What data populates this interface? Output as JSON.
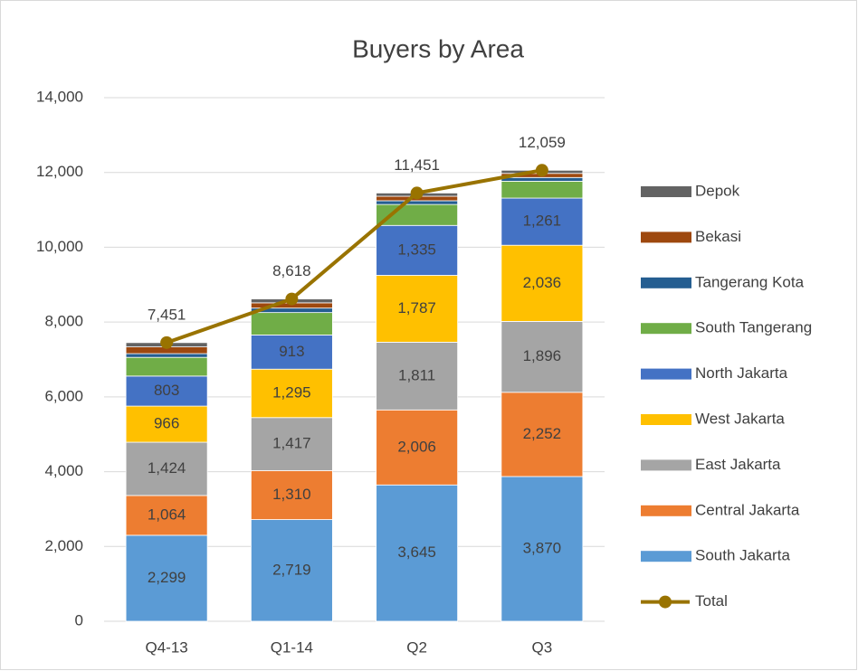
{
  "chart_data": {
    "type": "bar",
    "stacked": true,
    "title": "Buyers by Area",
    "categories": [
      "Q4-13",
      "Q1-14",
      "Q2",
      "Q3"
    ],
    "ylim": [
      0,
      14000
    ],
    "yticks": [
      0,
      {
        "value": 2000,
        "label": "2,000"
      },
      {
        "value": 4000,
        "label": "4,000"
      },
      {
        "value": 6000,
        "label": "6,000"
      },
      {
        "value": 8000,
        "label": "8,000"
      },
      {
        "value": 10000,
        "label": "10,000"
      },
      {
        "value": 12000,
        "label": "12,000"
      },
      {
        "value": 14000,
        "label": "14,000"
      }
    ],
    "grid": true,
    "legend": "right",
    "series": [
      {
        "name": "South Jakarta",
        "color": "#5b9bd5",
        "values": [
          2299,
          2719,
          3645,
          3870
        ],
        "value_labels": [
          "2,299",
          "2,719",
          "3,645",
          "3,870"
        ]
      },
      {
        "name": "Central Jakarta",
        "color": "#ed7d31",
        "values": [
          1064,
          1310,
          2006,
          2252
        ],
        "value_labels": [
          "1,064",
          "1,310",
          "2,006",
          "2,252"
        ]
      },
      {
        "name": "East Jakarta",
        "color": "#a5a5a5",
        "values": [
          1424,
          1417,
          1811,
          1896
        ],
        "value_labels": [
          "1,424",
          "1,417",
          "1,811",
          "1,896"
        ]
      },
      {
        "name": "West Jakarta",
        "color": "#ffc000",
        "values": [
          966,
          1295,
          1787,
          2036
        ],
        "value_labels": [
          "966",
          "1,295",
          "1,787",
          "2,036"
        ]
      },
      {
        "name": "North Jakarta",
        "color": "#4472c4",
        "values": [
          803,
          913,
          1335,
          1261
        ],
        "value_labels": [
          "803",
          "913",
          "1,335",
          "1,261"
        ]
      },
      {
        "name": "South Tangerang",
        "color": "#70ad47",
        "values": [
          500,
          600,
          560,
          450
        ]
      },
      {
        "name": "Tangerang Kota",
        "color": "#255e91",
        "values": [
          100,
          120,
          100,
          100
        ]
      },
      {
        "name": "Bekasi",
        "color": "#9e480e",
        "values": [
          180,
          140,
          120,
          110
        ]
      },
      {
        "name": "Depok",
        "color": "#636363",
        "values": [
          115,
          104,
          87,
          84
        ]
      },
      {
        "name": "Total",
        "type": "line",
        "color": "#997300",
        "values": [
          7451,
          8618,
          11451,
          12059
        ],
        "value_labels": [
          "7,451",
          "8,618",
          "11,451",
          "12,059"
        ]
      }
    ]
  }
}
